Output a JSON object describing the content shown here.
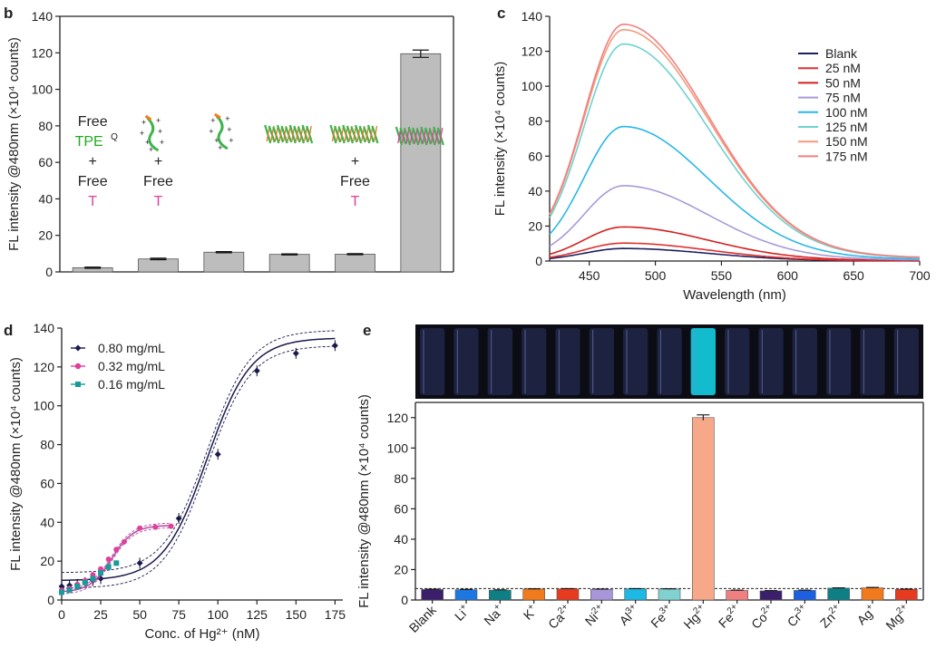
{
  "chart_data": [
    {
      "panel": "b",
      "type": "bar",
      "ylabel": "FL intensity @480nm (×10⁴ counts)",
      "ylim": [
        0,
        140
      ],
      "yticks": [
        0,
        20,
        40,
        60,
        80,
        100,
        120,
        140
      ],
      "values": [
        2.3,
        7.1,
        10.8,
        9.6,
        9.7,
        119.5
      ],
      "errors": [
        0.3,
        0.4,
        0.3,
        0.3,
        0.3,
        2.0
      ],
      "bar_color": "#bdbdbd",
      "annotations": [
        {
          "lines": [
            "Free",
            "TPE",
            "+",
            "Free",
            "T"
          ],
          "colors": [
            "#222222",
            "#22aa22",
            "#222222",
            "#222222",
            "#e0409a"
          ],
          "superscript": "Q"
        },
        {
          "lines": [
            "+",
            "Free",
            "T"
          ],
          "colors": [
            "#222222",
            "#222222",
            "#e0409a"
          ]
        },
        {
          "lines": []
        },
        {
          "lines": []
        },
        {
          "lines": [
            "+",
            "Free",
            "T"
          ],
          "colors": [
            "#222222",
            "#222222",
            "#e0409a"
          ]
        },
        {
          "lines": []
        }
      ]
    },
    {
      "panel": "c",
      "type": "line",
      "xlabel": "Wavelength (nm)",
      "ylabel": "FL intensity (×10⁴ counts)",
      "xlim": [
        420,
        700
      ],
      "ylim": [
        0,
        140
      ],
      "xticks": [
        450,
        500,
        550,
        600,
        650,
        700
      ],
      "yticks": [
        0,
        20,
        40,
        60,
        80,
        100,
        120,
        140
      ],
      "legend_position": "top-right",
      "series": [
        {
          "name": "Blank",
          "color": "#1f1f5e",
          "peak": 7,
          "base": 5
        },
        {
          "name": "25 nM",
          "color": "#e03030",
          "peak": 10,
          "base": 7
        },
        {
          "name": "50 nM",
          "color": "#d42020",
          "peak": 19,
          "base": 12
        },
        {
          "name": "75 nM",
          "color": "#a99ad8",
          "peak": 42,
          "base": 18
        },
        {
          "name": "100 nM",
          "color": "#27b7e8",
          "peak": 75,
          "base": 29
        },
        {
          "name": "125 nM",
          "color": "#6fd1d1",
          "peak": 121,
          "base": 45
        },
        {
          "name": "150 nM",
          "color": "#f59a7a",
          "peak": 129,
          "base": 47
        },
        {
          "name": "175 nM",
          "color": "#f08080",
          "peak": 132,
          "base": 48
        }
      ]
    },
    {
      "panel": "d",
      "type": "scatter",
      "xlabel": "Conc. of Hg²⁺ (nM)",
      "ylabel": "FL intensity @480nm (×10⁴ counts)",
      "xlim": [
        0,
        180
      ],
      "ylim": [
        0,
        140
      ],
      "xticks": [
        0,
        25,
        50,
        75,
        100,
        125,
        150,
        175
      ],
      "yticks": [
        0,
        20,
        40,
        60,
        80,
        100,
        120,
        140
      ],
      "legend_position": "top-left",
      "series": [
        {
          "name": "0.80 mg/mL",
          "color": "#1a1a4e",
          "marker": "diamond",
          "x": [
            0,
            5,
            10,
            15,
            20,
            25,
            50,
            75,
            100,
            125,
            150,
            175
          ],
          "y": [
            7,
            7.5,
            8,
            9,
            10,
            11,
            19,
            42,
            75,
            118,
            127,
            131
          ],
          "fit": {
            "bottom": 10,
            "top": 135,
            "x50": 93,
            "width": 14
          }
        },
        {
          "name": "0.32 mg/mL",
          "color": "#e0409a",
          "marker": "circle",
          "x": [
            0,
            5,
            10,
            15,
            20,
            25,
            30,
            35,
            40,
            50,
            60,
            70
          ],
          "y": [
            5,
            6,
            8,
            10,
            13,
            16,
            21,
            26,
            30,
            37,
            37.5,
            38
          ],
          "fit": {
            "bottom": 4,
            "top": 38.5,
            "x50": 32,
            "width": 7
          }
        },
        {
          "name": "0.16 mg/mL",
          "color": "#1a9a9a",
          "marker": "square",
          "x": [
            0,
            5,
            10,
            15,
            20,
            25,
            30,
            35
          ],
          "y": [
            4,
            5,
            7,
            9,
            11,
            14,
            17,
            19
          ],
          "fit": null
        }
      ]
    },
    {
      "panel": "e",
      "type": "bar",
      "ylabel": "FL intensity @480nm (×10⁴ counts)",
      "ylim": [
        0,
        130
      ],
      "yticks": [
        0,
        20,
        40,
        60,
        80,
        100,
        120
      ],
      "baseline": 7.5,
      "categories": [
        "Blank",
        "Li",
        "Na",
        "K",
        "Ca",
        "Ni",
        "Al",
        "Fe",
        "Hg",
        "Fe",
        "Co",
        "Cr",
        "Zn",
        "Ag",
        "Mg"
      ],
      "charges": [
        "",
        "+",
        "+",
        "+",
        "2+",
        "2+",
        "3+",
        "3+",
        "2+",
        "2+",
        "2+",
        "3+",
        "2+",
        "+",
        "2+"
      ],
      "values": [
        6.9,
        6.8,
        6.5,
        7.2,
        7.3,
        7.0,
        7.3,
        7.2,
        120,
        6.3,
        6.0,
        6.3,
        7.8,
        8.0,
        7.0
      ],
      "errors": [
        0.2,
        0.2,
        0.2,
        0.2,
        0.2,
        0.2,
        0.2,
        0.2,
        1.8,
        0.2,
        0.2,
        0.2,
        0.2,
        0.3,
        0.2
      ],
      "colors": [
        "#3b1f6b",
        "#1c78e0",
        "#0e7f84",
        "#f07a1c",
        "#e63b1e",
        "#a996d8",
        "#1db8e3",
        "#7fd2d0",
        "#f7a888",
        "#f08080",
        "#3b1f6b",
        "#1c5fe0",
        "#0e7f84",
        "#f07a1c",
        "#e63b1e"
      ]
    }
  ],
  "panel_labels": {
    "b": "b",
    "c": "c",
    "d": "d",
    "e": "e"
  }
}
